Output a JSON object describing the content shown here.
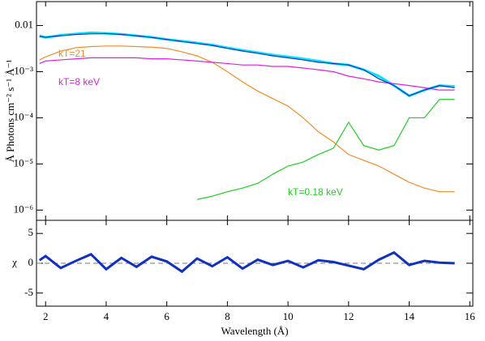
{
  "chart_data": [
    {
      "type": "line",
      "ylabel": "Å Photons cm⁻² s⁻¹ Å⁻¹",
      "annotations": [
        "kT=21",
        "kT=8 keV",
        "kT=0.18 keV"
      ],
      "ylog": true,
      "xlim": [
        1.7,
        16.1
      ],
      "xticks": [
        2,
        4,
        6,
        8,
        10,
        12,
        14,
        16
      ],
      "ylim": [
        6e-07,
        0.033
      ],
      "yticks": [
        {
          "value": 1e-06,
          "label": "10⁻⁶"
        },
        {
          "value": 1e-05,
          "label": "10⁻⁵"
        },
        {
          "value": 0.0001,
          "label": "10⁻⁴"
        },
        {
          "value": 0.001,
          "label": "10⁻³"
        },
        0.01
      ],
      "x": [
        1.8,
        2,
        2.5,
        3,
        3.5,
        4,
        4.5,
        5,
        5.5,
        6,
        6.5,
        7,
        7.5,
        8,
        8.5,
        9,
        9.5,
        10,
        10.5,
        11,
        11.5,
        12,
        12.5,
        13,
        13.5,
        14,
        14.5,
        15,
        15.5
      ],
      "series": [
        {
          "color": "#00e5ff",
          "values": [
            0.006,
            0.0055,
            0.0062,
            0.0066,
            0.007,
            0.0068,
            0.0065,
            0.006,
            0.0056,
            0.005,
            0.0046,
            0.0042,
            0.0038,
            0.0033,
            0.0029,
            0.0026,
            0.0023,
            0.0021,
            0.0019,
            0.0017,
            0.0015,
            0.0014,
            0.0011,
            0.0008,
            0.0005,
            0.0003,
            0.0004,
            0.0005,
            0.00048
          ]
        },
        {
          "color": "#f28c28",
          "values": [
            0.0018,
            0.0021,
            0.0028,
            0.0033,
            0.0035,
            0.0036,
            0.0036,
            0.0035,
            0.0034,
            0.0032,
            0.0027,
            0.0022,
            0.0016,
            0.001,
            0.0006,
            0.00038,
            0.00026,
            0.00018,
            0.0001,
            5e-05,
            3e-05,
            1.6e-05,
            1.2e-05,
            9e-06,
            6e-06,
            4e-06,
            3e-06,
            2.5e-06,
            2.5e-06
          ]
        },
        {
          "color": "#e020e0",
          "values": [
            0.0015,
            0.0017,
            0.0018,
            0.0019,
            0.002,
            0.002,
            0.002,
            0.002,
            0.0019,
            0.0019,
            0.0018,
            0.0017,
            0.0016,
            0.0015,
            0.0014,
            0.0014,
            0.0013,
            0.0013,
            0.0012,
            0.0011,
            0.001,
            0.0008,
            0.0007,
            0.0006,
            0.00055,
            0.0005,
            0.00045,
            0.0004,
            0.0004
          ]
        },
        {
          "color": "#22cc22",
          "values": [
            null,
            null,
            null,
            null,
            null,
            null,
            null,
            null,
            null,
            null,
            null,
            1.7e-06,
            2e-06,
            2.5e-06,
            3e-06,
            3.8e-06,
            6e-06,
            9e-06,
            1.1e-05,
            1.6e-05,
            2.2e-05,
            8e-05,
            2.5e-05,
            2e-05,
            2.5e-05,
            0.0001,
            0.0001,
            0.00025,
            0.00025
          ]
        },
        {
          "color": "#1030c0",
          "values": [
            0.0058,
            0.0056,
            0.006,
            0.0064,
            0.0066,
            0.0067,
            0.0064,
            0.006,
            0.0055,
            0.005,
            0.0045,
            0.0041,
            0.0037,
            0.0032,
            0.0028,
            0.0025,
            0.0022,
            0.002,
            0.0018,
            0.0016,
            0.0015,
            0.0014,
            0.0011,
            0.0007,
            0.0005,
            0.0003,
            0.0004,
            0.0005,
            0.00045
          ]
        }
      ]
    },
    {
      "type": "line",
      "xlabel": "Wavelength (Å)",
      "ylabel": "χ",
      "xlim": [
        1.7,
        16.1
      ],
      "xticks": [
        2,
        4,
        6,
        8,
        10,
        12,
        14,
        16
      ],
      "ylim": [
        -7.2,
        7.2
      ],
      "yticks": [
        -5,
        0,
        5
      ],
      "x": [
        1.8,
        2,
        2.5,
        3,
        3.5,
        4,
        4.5,
        5,
        5.5,
        6,
        6.5,
        7,
        7.5,
        8,
        8.5,
        9,
        9.5,
        10,
        10.5,
        11,
        11.5,
        12,
        12.5,
        13,
        13.5,
        14,
        14.5,
        15,
        15.5
      ],
      "series": [
        {
          "color": "#1030c0",
          "values": [
            0.5,
            1.2,
            -0.8,
            0.4,
            1.5,
            -1.0,
            0.9,
            -0.6,
            1.1,
            0.3,
            -1.4,
            0.8,
            -0.5,
            1.0,
            -0.9,
            0.6,
            -0.3,
            0.4,
            -0.7,
            0.5,
            0.2,
            -0.4,
            -1.0,
            0.6,
            1.8,
            -0.3,
            0.4,
            0.1,
            0.0
          ]
        }
      ]
    }
  ]
}
